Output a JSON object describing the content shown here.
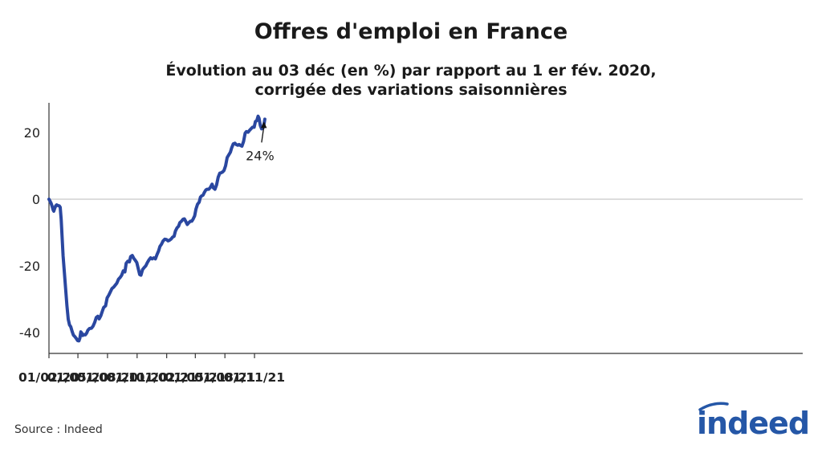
{
  "title": "Offres d'emploi en France",
  "subtitle": {
    "line1": "Évolution au 03 déc (en %) par rapport au 1 er fév. 2020,",
    "line2": "corrigée des variations saisonnières"
  },
  "source": "Source : Indeed",
  "logo_text": "indeed",
  "colors": {
    "line": "#2a47a0",
    "axis": "#333333",
    "zero_line": "#bbbbbb",
    "logo": "#2557a7"
  },
  "chart_data": {
    "type": "line",
    "title": "Offres d'emploi en France",
    "subtitle": "Évolution au 03 déc (en %) par rapport au 1 er fév. 2020, corrigée des variations saisonnières",
    "xlabel": "",
    "ylabel": "",
    "ylim": [
      -44,
      28
    ],
    "xlim": [
      "2020-02-01",
      "2021-12-31"
    ],
    "yticks": [
      20,
      0,
      -20,
      -40
    ],
    "xticks": [
      {
        "date": "2020-02-01",
        "label": "01/02/20"
      },
      {
        "date": "2020-05-01",
        "label": "01/05/20"
      },
      {
        "date": "2020-08-01",
        "label": "01/08/20"
      },
      {
        "date": "2020-11-01",
        "label": "01/11/20"
      },
      {
        "date": "2021-02-01",
        "label": "01/02/21"
      },
      {
        "date": "2021-05-01",
        "label": "01/05/21"
      },
      {
        "date": "2021-08-01",
        "label": "01/08/21"
      },
      {
        "date": "2021-11-01",
        "label": "01/11/21"
      }
    ],
    "grid": false,
    "series": [
      {
        "points": [
          [
            "2020-02-01",
            0
          ],
          [
            "2020-02-04",
            -0.5
          ],
          [
            "2020-02-08",
            -1.3
          ],
          [
            "2020-02-11",
            -2.2
          ],
          [
            "2020-02-14",
            -3.2
          ],
          [
            "2020-02-16",
            -3.6
          ],
          [
            "2020-02-19",
            -2.7
          ],
          [
            "2020-02-22",
            -2.0
          ],
          [
            "2020-02-25",
            -1.7
          ],
          [
            "2020-02-29",
            -1.9
          ],
          [
            "2020-03-04",
            -2.0
          ],
          [
            "2020-03-07",
            -2.4
          ],
          [
            "2020-03-10",
            -6.0
          ],
          [
            "2020-03-13",
            -11.5
          ],
          [
            "2020-03-16",
            -17.0
          ],
          [
            "2020-03-20",
            -22.0
          ],
          [
            "2020-03-24",
            -27.0
          ],
          [
            "2020-03-28",
            -32.0
          ],
          [
            "2020-04-01",
            -36.0
          ],
          [
            "2020-04-05",
            -37.7
          ],
          [
            "2020-04-09",
            -38.3
          ],
          [
            "2020-04-13",
            -39.7
          ],
          [
            "2020-04-17",
            -40.8
          ],
          [
            "2020-04-22",
            -41.3
          ],
          [
            "2020-04-26",
            -41.8
          ],
          [
            "2020-04-30",
            -42.4
          ],
          [
            "2020-05-04",
            -42.5
          ],
          [
            "2020-05-07",
            -41.7
          ],
          [
            "2020-05-10",
            -39.8
          ],
          [
            "2020-05-13",
            -40.2
          ],
          [
            "2020-05-16",
            -40.9
          ],
          [
            "2020-05-20",
            -40.6
          ],
          [
            "2020-05-24",
            -40.7
          ],
          [
            "2020-05-28",
            -40.2
          ],
          [
            "2020-06-01",
            -39.3
          ],
          [
            "2020-06-06",
            -38.8
          ],
          [
            "2020-06-12",
            -38.7
          ],
          [
            "2020-06-17",
            -38.1
          ],
          [
            "2020-06-22",
            -37.0
          ],
          [
            "2020-06-27",
            -35.5
          ],
          [
            "2020-07-02",
            -35.1
          ],
          [
            "2020-07-06",
            -35.9
          ],
          [
            "2020-07-11",
            -35.0
          ],
          [
            "2020-07-16",
            -33.6
          ],
          [
            "2020-07-20",
            -32.5
          ],
          [
            "2020-07-26",
            -32.0
          ],
          [
            "2020-07-31",
            -29.6
          ],
          [
            "2020-08-05",
            -28.8
          ],
          [
            "2020-08-10",
            -27.8
          ],
          [
            "2020-08-15",
            -26.8
          ],
          [
            "2020-08-20",
            -26.4
          ],
          [
            "2020-08-25",
            -25.8
          ],
          [
            "2020-08-30",
            -25.2
          ],
          [
            "2020-09-04",
            -24.0
          ],
          [
            "2020-09-09",
            -23.5
          ],
          [
            "2020-09-14",
            -22.8
          ],
          [
            "2020-09-19",
            -21.5
          ],
          [
            "2020-09-24",
            -21.8
          ],
          [
            "2020-09-28",
            -19.2
          ],
          [
            "2020-10-03",
            -18.6
          ],
          [
            "2020-10-08",
            -18.8
          ],
          [
            "2020-10-12",
            -17.2
          ],
          [
            "2020-10-17",
            -16.9
          ],
          [
            "2020-10-22",
            -17.8
          ],
          [
            "2020-10-26",
            -18.3
          ],
          [
            "2020-10-31",
            -19.0
          ],
          [
            "2020-11-04",
            -20.6
          ],
          [
            "2020-11-09",
            -22.6
          ],
          [
            "2020-11-13",
            -22.8
          ],
          [
            "2020-11-18",
            -21.1
          ],
          [
            "2020-11-23",
            -20.5
          ],
          [
            "2020-11-28",
            -20.0
          ],
          [
            "2020-12-03",
            -19.0
          ],
          [
            "2020-12-08",
            -18.2
          ],
          [
            "2020-12-13",
            -17.6
          ],
          [
            "2020-12-18",
            -17.9
          ],
          [
            "2020-12-23",
            -17.6
          ],
          [
            "2020-12-28",
            -17.9
          ],
          [
            "2021-01-02",
            -16.6
          ],
          [
            "2021-01-07",
            -15.5
          ],
          [
            "2021-01-11",
            -14.2
          ],
          [
            "2021-01-16",
            -13.5
          ],
          [
            "2021-01-21",
            -12.5
          ],
          [
            "2021-01-26",
            -12.0
          ],
          [
            "2021-01-31",
            -12.1
          ],
          [
            "2021-02-05",
            -12.5
          ],
          [
            "2021-02-10",
            -12.3
          ],
          [
            "2021-02-15",
            -11.9
          ],
          [
            "2021-02-19",
            -11.4
          ],
          [
            "2021-02-24",
            -11.1
          ],
          [
            "2021-02-28",
            -9.6
          ],
          [
            "2021-03-05",
            -8.6
          ],
          [
            "2021-03-10",
            -8.1
          ],
          [
            "2021-03-14",
            -7.0
          ],
          [
            "2021-03-19",
            -6.6
          ],
          [
            "2021-03-24",
            -6.0
          ],
          [
            "2021-03-28",
            -5.9
          ],
          [
            "2021-04-02",
            -6.8
          ],
          [
            "2021-04-06",
            -7.6
          ],
          [
            "2021-04-11",
            -7.0
          ],
          [
            "2021-04-16",
            -6.6
          ],
          [
            "2021-04-20",
            -6.6
          ],
          [
            "2021-04-24",
            -6.0
          ],
          [
            "2021-04-29",
            -5.0
          ],
          [
            "2021-05-03",
            -3.0
          ],
          [
            "2021-05-08",
            -1.5
          ],
          [
            "2021-05-13",
            -0.9
          ],
          [
            "2021-05-17",
            0.6
          ],
          [
            "2021-05-21",
            1.0
          ],
          [
            "2021-05-25",
            1.2
          ],
          [
            "2021-05-29",
            2.0
          ],
          [
            "2021-06-03",
            2.8
          ],
          [
            "2021-06-07",
            3.0
          ],
          [
            "2021-06-12",
            3.0
          ],
          [
            "2021-06-17",
            3.6
          ],
          [
            "2021-06-22",
            4.5
          ],
          [
            "2021-06-26",
            3.4
          ],
          [
            "2021-07-01",
            3.0
          ],
          [
            "2021-07-06",
            4.3
          ],
          [
            "2021-07-11",
            6.6
          ],
          [
            "2021-07-16",
            7.8
          ],
          [
            "2021-07-20",
            7.9
          ],
          [
            "2021-07-25",
            8.2
          ],
          [
            "2021-07-29",
            8.6
          ],
          [
            "2021-08-03",
            10.0
          ],
          [
            "2021-08-08",
            12.5
          ],
          [
            "2021-08-13",
            13.3
          ],
          [
            "2021-08-18",
            14.1
          ],
          [
            "2021-08-22",
            15.4
          ],
          [
            "2021-08-27",
            16.6
          ],
          [
            "2021-09-01",
            16.8
          ],
          [
            "2021-09-05",
            16.4
          ],
          [
            "2021-09-10",
            16.2
          ],
          [
            "2021-09-14",
            16.4
          ],
          [
            "2021-09-19",
            16.1
          ],
          [
            "2021-09-23",
            15.9
          ],
          [
            "2021-09-28",
            17.3
          ],
          [
            "2021-10-03",
            19.8
          ],
          [
            "2021-10-07",
            20.3
          ],
          [
            "2021-10-12",
            20.1
          ],
          [
            "2021-10-17",
            20.7
          ],
          [
            "2021-10-22",
            21.2
          ],
          [
            "2021-10-26",
            21.6
          ],
          [
            "2021-10-31",
            21.6
          ],
          [
            "2021-11-04",
            23.3
          ],
          [
            "2021-11-08",
            23.6
          ],
          [
            "2021-11-12",
            24.9
          ],
          [
            "2021-11-15",
            24.3
          ],
          [
            "2021-11-19",
            22.1
          ],
          [
            "2021-11-23",
            21.1
          ],
          [
            "2021-11-27",
            21.3
          ],
          [
            "2021-12-01",
            22.8
          ],
          [
            "2021-12-03",
            24.0
          ]
        ]
      }
    ],
    "annotations": [
      {
        "date": "2021-12-03",
        "value": 24,
        "text": "24%"
      }
    ]
  }
}
